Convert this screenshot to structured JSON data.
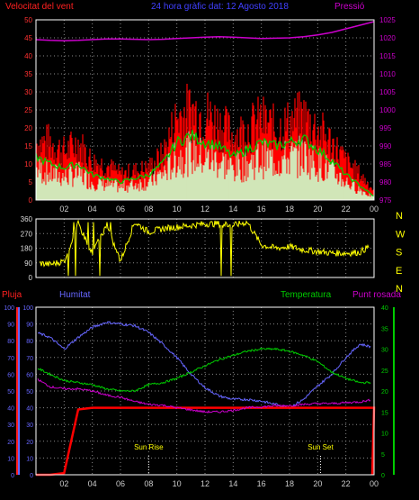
{
  "header": {
    "wind_label": "Velocitat del vent",
    "title": "24 hora gràfic dat:  12 Agosto 2018",
    "pressure_label": "Pressió"
  },
  "colors": {
    "wind_gust": "#ff0000",
    "wind_avg": "#00cc00",
    "wind_fill": "#ccffcc",
    "pressure": "#cc00cc",
    "direction": "#ffff00",
    "rain": "#ff0000",
    "humidity": "#6666ff",
    "temperature": "#00cc00",
    "dewpoint": "#cc00cc",
    "frame": "#ffffff",
    "grid": "#888888"
  },
  "chart_data": [
    {
      "type": "line",
      "title": "Velocitat del vent",
      "x_ticks": [
        "02",
        "04",
        "06",
        "08",
        "10",
        "12",
        "14",
        "16",
        "18",
        "20",
        "22",
        "00"
      ],
      "x_hours": [
        0,
        1,
        2,
        3,
        4,
        5,
        6,
        7,
        8,
        9,
        10,
        11,
        12,
        13,
        14,
        15,
        16,
        17,
        18,
        19,
        20,
        21,
        22,
        23,
        24
      ],
      "ylim_left": [
        0,
        50
      ],
      "yticks_left": [
        "0",
        "5",
        "10",
        "15",
        "20",
        "25",
        "30",
        "35",
        "40",
        "45",
        "50"
      ],
      "ylim_right": [
        975,
        1025
      ],
      "yticks_right": [
        "975",
        "980",
        "985",
        "990",
        "995",
        "1000",
        "1005",
        "1010",
        "1015",
        "1020",
        "1025"
      ],
      "series": [
        {
          "name": "Velocitat del vent",
          "role": "gust",
          "values": [
            18,
            18,
            15,
            18,
            12,
            11,
            8,
            9,
            10,
            14,
            26,
            28,
            27,
            24,
            20,
            22,
            25,
            22,
            24,
            26,
            22,
            18,
            12,
            8,
            3
          ]
        },
        {
          "name": "",
          "role": "average",
          "values": [
            12,
            10,
            9,
            10,
            7,
            6,
            5,
            6,
            7,
            10,
            16,
            18,
            16,
            15,
            12,
            14,
            16,
            15,
            16,
            17,
            14,
            11,
            7,
            4,
            1
          ]
        },
        {
          "name": "Pressió",
          "values": [
            1019.5,
            1019.3,
            1019.2,
            1019.3,
            1019.5,
            1019.7,
            1019.7,
            1019.6,
            1019.5,
            1019.6,
            1019.8,
            1020.0,
            1020.2,
            1020.3,
            1020.2,
            1020.0,
            1019.8,
            1019.9,
            1020.0,
            1020.3,
            1020.8,
            1021.5,
            1022.5,
            1023.5,
            1024.5
          ]
        }
      ]
    },
    {
      "type": "line",
      "title": "",
      "x_hours": [
        0,
        1,
        2,
        3,
        4,
        5,
        6,
        7,
        8,
        9,
        10,
        11,
        12,
        13,
        14,
        15,
        16,
        17,
        18,
        19,
        20,
        21,
        22,
        23,
        24
      ],
      "ylim": [
        0,
        360
      ],
      "yticks": [
        "0",
        "90",
        "180",
        "270",
        "360"
      ],
      "compass": [
        "N",
        "W",
        "S",
        "E",
        "N"
      ],
      "series": [
        {
          "name": "",
          "values": [
            90,
            80,
            100,
            330,
            150,
            320,
            100,
            340,
            280,
            300,
            310,
            320,
            330,
            330,
            320,
            340,
            200,
            180,
            190,
            170,
            160,
            150,
            150,
            155,
            210
          ]
        }
      ]
    },
    {
      "type": "line",
      "title": "",
      "x_ticks": [
        "02",
        "04",
        "06",
        "08",
        "10",
        "12",
        "14",
        "16",
        "18",
        "20",
        "22",
        "00"
      ],
      "x_hours": [
        0,
        1,
        2,
        3,
        4,
        5,
        6,
        7,
        8,
        9,
        10,
        11,
        12,
        13,
        14,
        15,
        16,
        17,
        18,
        19,
        20,
        21,
        22,
        23,
        24
      ],
      "ylim_left": [
        0,
        100
      ],
      "yticks_left": [
        "0",
        "10",
        "20",
        "30",
        "40",
        "50",
        "60",
        "70",
        "80",
        "90",
        "100"
      ],
      "ylim_right": [
        0,
        40
      ],
      "yticks_right": [
        "0",
        "5",
        "10",
        "15",
        "20",
        "25",
        "30",
        "35",
        "40"
      ],
      "labels": {
        "rain": "Pluja",
        "humidity": "Humitat",
        "temperature": "Temperatura",
        "dewpoint": "Punt rosada"
      },
      "annotations": [
        {
          "text": "Sun Rise",
          "hour": 8.0
        },
        {
          "text": "Sun Set",
          "hour": 20.2
        }
      ],
      "series": [
        {
          "name": "Humitat",
          "axis": "left",
          "values": [
            85,
            82,
            75,
            82,
            88,
            91,
            90,
            89,
            85,
            78,
            70,
            60,
            52,
            47,
            45,
            45,
            44,
            42,
            40,
            45,
            53,
            60,
            70,
            78,
            76
          ]
        },
        {
          "name": "Pluja",
          "axis": "left",
          "values": [
            0,
            0,
            1,
            39,
            40,
            40,
            40,
            40,
            40,
            40,
            40,
            40,
            40,
            40,
            40,
            40,
            40,
            40,
            40,
            40,
            40,
            40,
            40,
            40,
            40
          ]
        },
        {
          "name": "Temperatura",
          "axis": "right",
          "values": [
            25.6,
            24.0,
            22.5,
            22.0,
            21.5,
            20.5,
            20.0,
            20.0,
            21.5,
            22.0,
            23.0,
            24.5,
            26.0,
            27.5,
            28.5,
            29.5,
            30.0,
            30.0,
            29.5,
            28.5,
            27.0,
            24.5,
            23.0,
            22.0,
            22.0
          ]
        },
        {
          "name": "Punt rosada",
          "axis": "right",
          "values": [
            23.0,
            21.0,
            20.5,
            20.5,
            20.0,
            19.0,
            18.5,
            17.5,
            16.8,
            16.6,
            16.0,
            15.5,
            15.0,
            15.0,
            15.4,
            16.0,
            16.2,
            16.5,
            16.5,
            16.8,
            17.0,
            17.0,
            17.2,
            17.4,
            18.0
          ]
        }
      ]
    }
  ]
}
